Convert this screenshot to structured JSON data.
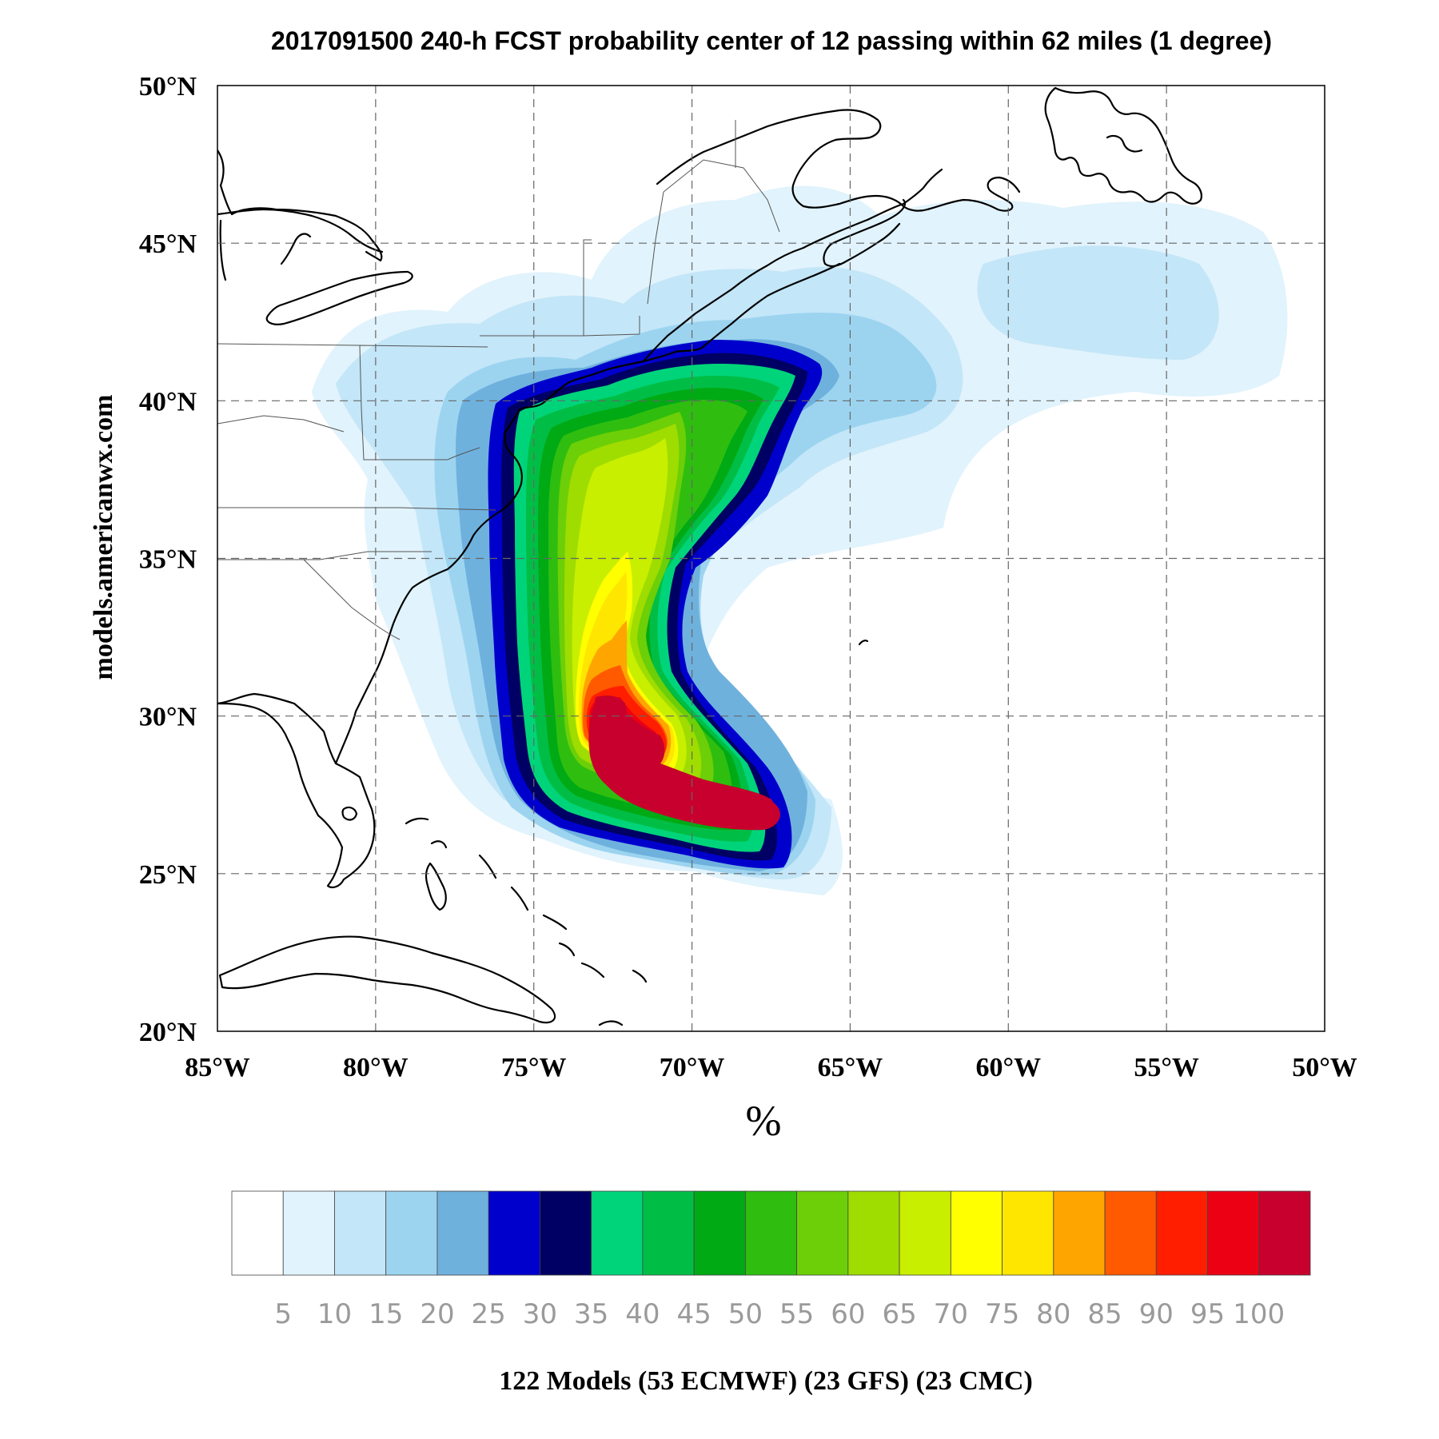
{
  "title": "2017091500 240-h FCST probability center of 12 passing within 62 miles (1 degree)",
  "side_label": "models.americanwx.com",
  "unit_label": "%",
  "footer": "122 Models (53 ECMWF) (23 GFS) (23 CMC)",
  "map": {
    "lon_range": [
      -85,
      -50
    ],
    "lat_range": [
      20,
      50
    ],
    "lon_ticks": [
      {
        "value": -85,
        "label": "85°W"
      },
      {
        "value": -80,
        "label": "80°W"
      },
      {
        "value": -75,
        "label": "75°W"
      },
      {
        "value": -70,
        "label": "70°W"
      },
      {
        "value": -65,
        "label": "65°W"
      },
      {
        "value": -60,
        "label": "60°W"
      },
      {
        "value": -55,
        "label": "55°W"
      },
      {
        "value": -50,
        "label": "50°W"
      }
    ],
    "lat_ticks": [
      {
        "value": 20,
        "label": "20°N"
      },
      {
        "value": 25,
        "label": "25°N"
      },
      {
        "value": 30,
        "label": "30°N"
      },
      {
        "value": 35,
        "label": "35°N"
      },
      {
        "value": 40,
        "label": "40°N"
      },
      {
        "value": 45,
        "label": "45°N"
      },
      {
        "value": 50,
        "label": "50°N"
      }
    ],
    "grid": true
  },
  "colorbar": {
    "colors": [
      "#ffffff",
      "#e1f3fc",
      "#c3e6f8",
      "#9cd4f0",
      "#6fb1dd",
      "#0000cd",
      "#000064",
      "#00d47a",
      "#00be45",
      "#00aa14",
      "#2fbe0f",
      "#6ccf07",
      "#9fdc00",
      "#c8ef00",
      "#ffff00",
      "#ffe600",
      "#ffa500",
      "#ff5a00",
      "#ff1e00",
      "#eb0014",
      "#c8002d"
    ],
    "labels": [
      "5",
      "10",
      "15",
      "20",
      "25",
      "30",
      "35",
      "40",
      "45",
      "50",
      "55",
      "60",
      "65",
      "70",
      "75",
      "80",
      "85",
      "90",
      "95",
      "100"
    ]
  }
}
